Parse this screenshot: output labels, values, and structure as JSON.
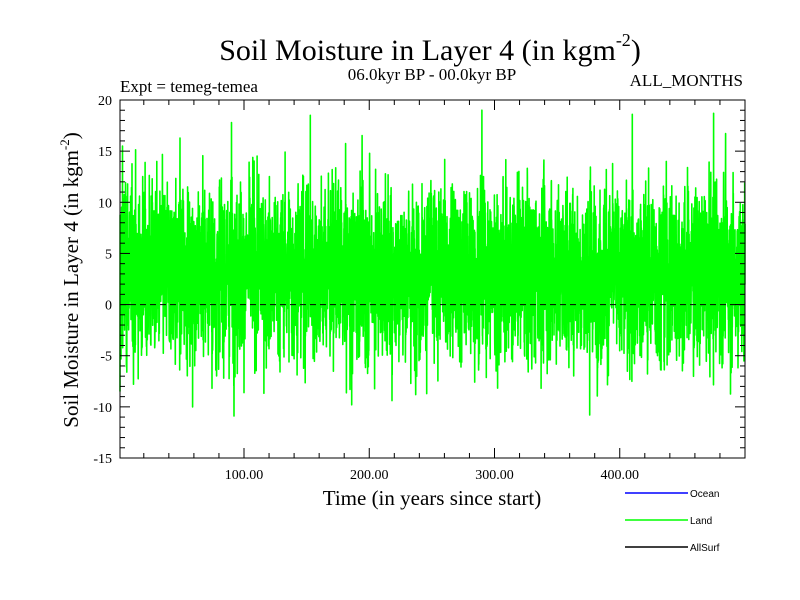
{
  "chart_data": {
    "type": "line",
    "title_main": "Soil Moisture in Layer 4 (in kgm",
    "title_sup": "-2",
    "title_close": ")",
    "subtitle": "06.0kyr BP - 00.0kyr BP",
    "expt_label": "Expt = temeg-temea",
    "months_label": "ALL_MONTHS",
    "xlabel": "Time (in years since start)",
    "ylabel_main": "Soil Moisture in Layer 4 (in kgm",
    "ylabel_sup": "-2",
    "ylabel_close": ")",
    "xlim": [
      1,
      500
    ],
    "ylim": [
      -15,
      20
    ],
    "xticks": [
      100,
      200,
      300,
      400
    ],
    "xtick_labels": [
      "100.00",
      "200.00",
      "300.00",
      "400.00"
    ],
    "yticks": [
      -15,
      -10,
      -5,
      0,
      5,
      10,
      15,
      20
    ],
    "ytick_labels": [
      "-15",
      "-10",
      "-5",
      "0",
      "5",
      "10",
      "15",
      "20"
    ],
    "zero_line": 0,
    "legend": [
      {
        "name": "Ocean",
        "color": "#0000ff"
      },
      {
        "name": "Land",
        "color": "#00ff00"
      },
      {
        "name": "AllSurf",
        "color": "#000000"
      }
    ],
    "series": [
      {
        "name": "Land",
        "color": "#00ff00",
        "n_points": 6000,
        "x_start": 1,
        "x_end": 500,
        "mean": 3.2,
        "std": 4.2,
        "peaks": [
          {
            "x": 90,
            "y": 17.8
          },
          {
            "x": 153,
            "y": 18.5
          },
          {
            "x": 290,
            "y": 19.0
          },
          {
            "x": 410,
            "y": 18.6
          },
          {
            "x": 475,
            "y": 18.7
          },
          {
            "x": 3,
            "y": 15.5
          },
          {
            "x": 59,
            "y": -10.0
          },
          {
            "x": 186,
            "y": -9.8
          },
          {
            "x": 376,
            "y": -10.8
          },
          {
            "x": 1,
            "y": -8.5
          }
        ]
      }
    ]
  }
}
